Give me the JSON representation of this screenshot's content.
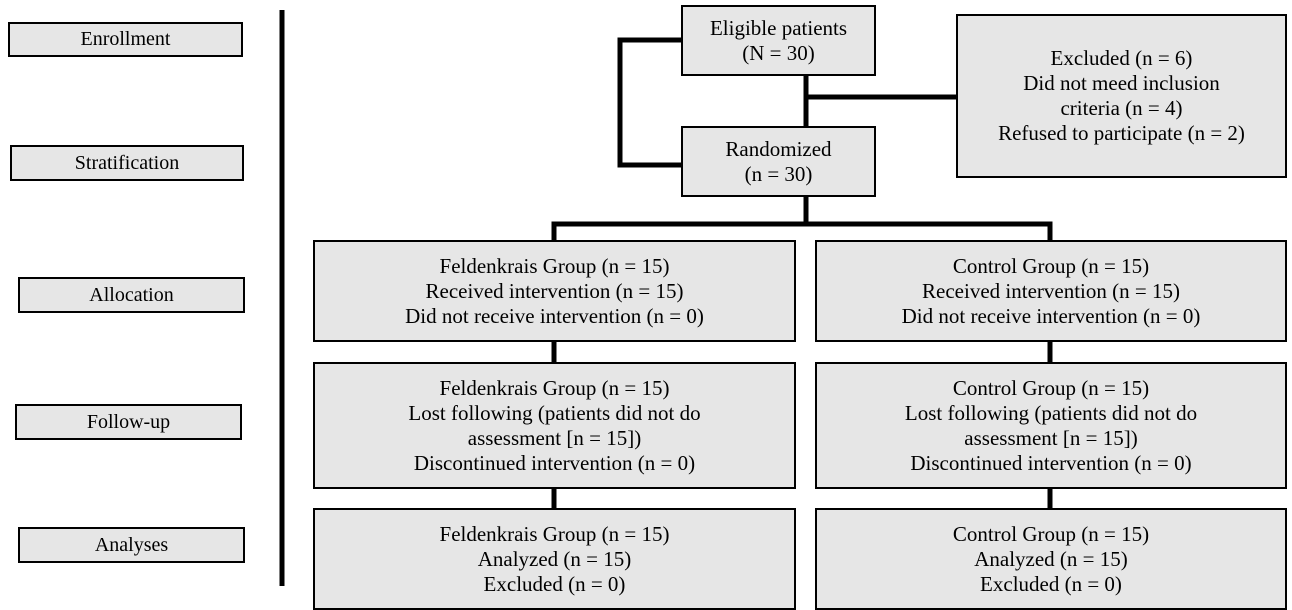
{
  "stages": [
    "Enrollment",
    "Stratification",
    "Allocation",
    "Follow-up",
    "Analyses"
  ],
  "eligible": [
    "Eligible patients",
    "(N = 30)"
  ],
  "excluded": [
    "Excluded (n = 6)",
    "Did not meed inclusion",
    "criteria (n = 4)",
    "Refused to participate (n = 2)"
  ],
  "randomized": [
    "Randomized",
    "(n = 30)"
  ],
  "arms": [
    {
      "allocation": [
        "Feldenkrais Group (n = 15)",
        "Received intervention (n = 15)",
        "Did not receive intervention (n = 0)"
      ],
      "follow_up": [
        "Feldenkrais Group (n = 15)",
        "Lost following (patients did not do",
        "assessment [n = 15])",
        "Discontinued intervention (n = 0)"
      ],
      "analyses": [
        "Feldenkrais Group (n = 15)",
        "Analyzed (n = 15)",
        "Excluded (n = 0)"
      ]
    },
    {
      "allocation": [
        "Control Group (n = 15)",
        "Received intervention (n = 15)",
        "Did not receive intervention (n = 0)"
      ],
      "follow_up": [
        "Control Group (n = 15)",
        "Lost following (patients did not do",
        "assessment [n = 15])",
        "Discontinued intervention (n = 0)"
      ],
      "analyses": [
        "Control Group (n = 15)",
        "Analyzed (n = 15)",
        "Excluded (n = 0)"
      ]
    }
  ]
}
